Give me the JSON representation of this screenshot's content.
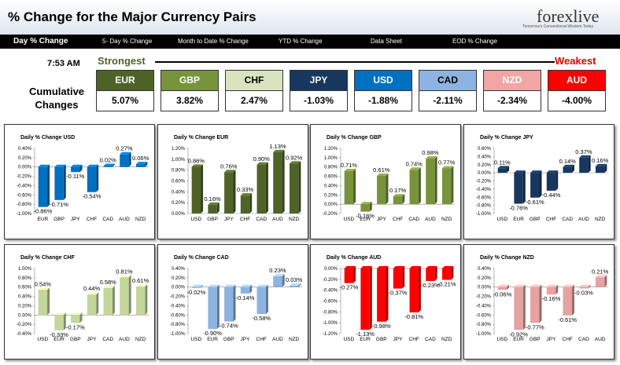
{
  "header": {
    "title": "% Change for the Major Currency Pairs",
    "logo_text": "forexlive",
    "logo_tagline": "Tomorrow's Conventional Wisdom Today"
  },
  "nav": {
    "items": [
      "Day % Change",
      "5- Day % Change",
      "Month to Date % Change",
      "YTD % Change",
      "Data Sheet",
      "EOD % Change"
    ],
    "active": "Day % Change"
  },
  "summary": {
    "time": "7:53 AM",
    "strongest_label": "Strongest",
    "weakest_label": "Weakest",
    "cumulative_label": "Cumulative Changes",
    "currencies": [
      {
        "code": "EUR",
        "value": "5.07%",
        "bg": "#4f6228",
        "fg": "#ffffff"
      },
      {
        "code": "GBP",
        "value": "3.82%",
        "bg": "#77933c",
        "fg": "#ffffff"
      },
      {
        "code": "CHF",
        "value": "2.47%",
        "bg": "#d7e4bd",
        "fg": "#000000"
      },
      {
        "code": "JPY",
        "value": "-1.03%",
        "bg": "#17375e",
        "fg": "#ffffff"
      },
      {
        "code": "USD",
        "value": "-1.88%",
        "bg": "#0070c0",
        "fg": "#ffffff"
      },
      {
        "code": "CAD",
        "value": "-2.11%",
        "bg": "#8db3e2",
        "fg": "#000000"
      },
      {
        "code": "NZD",
        "value": "-2.34%",
        "bg": "#f2a5a5",
        "fg": "#ffffff"
      },
      {
        "code": "AUD",
        "value": "-4.00%",
        "bg": "#ff0000",
        "fg": "#ffffff"
      }
    ]
  },
  "chart_data": [
    {
      "type": "bar",
      "title": "Daily % Change USD",
      "categories": [
        "EUR",
        "GBP",
        "JPY",
        "CHF",
        "CAD",
        "AUD",
        "NZD"
      ],
      "values": [
        -0.86,
        -0.71,
        -0.11,
        -0.54,
        0.02,
        0.27,
        0.06
      ],
      "labels": [
        "-0.86%",
        "-0.71%",
        "-0.11%",
        "-0.54%",
        "0.02%",
        "0.27%",
        "0.06%"
      ],
      "ylim": [
        -1.0,
        0.4
      ],
      "ticks": [
        "0.40%",
        "0.20%",
        "0.00%",
        "-0.20%",
        "-0.40%",
        "-0.60%",
        "-0.80%",
        "-1.00%"
      ],
      "tick_values": [
        0.4,
        0.2,
        0,
        -0.2,
        -0.4,
        -0.6,
        -0.8,
        -1.0
      ],
      "color": "#0070c0",
      "colors": [
        "#0070c0",
        "#0070c0",
        "#0070c0",
        "#0070c0",
        "#0070c0",
        "#0070c0",
        "#0070c0"
      ]
    },
    {
      "type": "bar",
      "title": "Daily % Change EUR",
      "categories": [
        "USD",
        "GBP",
        "JPY",
        "CHF",
        "CAD",
        "AUD",
        "NZD"
      ],
      "values": [
        0.86,
        0.16,
        0.76,
        0.33,
        0.9,
        1.13,
        0.92
      ],
      "labels": [
        "0.86%",
        "0.16%",
        "0.76%",
        "0.33%",
        "0.90%",
        "1.13%",
        "0.92%"
      ],
      "ylim": [
        0,
        1.2
      ],
      "ticks": [
        "1.20%",
        "1.00%",
        "0.80%",
        "0.60%",
        "0.40%",
        "0.20%",
        "0.00%"
      ],
      "tick_values": [
        1.2,
        1.0,
        0.8,
        0.6,
        0.4,
        0.2,
        0
      ],
      "color": "#4f6228",
      "colors": [
        "#4f6228",
        "#4f6228",
        "#4f6228",
        "#4f6228",
        "#4f6228",
        "#4f6228",
        "#4f6228"
      ]
    },
    {
      "type": "bar",
      "title": "Daily % Change GBP",
      "categories": [
        "USD",
        "EUR",
        "JPY",
        "CHF",
        "CAD",
        "AUD",
        "NZD"
      ],
      "values": [
        0.71,
        -0.16,
        0.61,
        0.17,
        0.74,
        0.98,
        0.77
      ],
      "labels": [
        "0.71%",
        "-0.16%",
        "0.61%",
        "0.17%",
        "0.74%",
        "0.98%",
        "0.77%"
      ],
      "ylim": [
        -0.2,
        1.2
      ],
      "ticks": [
        "1.20%",
        "1.00%",
        "0.80%",
        "0.60%",
        "0.40%",
        "0.20%",
        "0.00%",
        "-0.20%"
      ],
      "tick_values": [
        1.2,
        1.0,
        0.8,
        0.6,
        0.4,
        0.2,
        0,
        -0.2
      ],
      "color": "#77933c",
      "colors": [
        "#77933c",
        "#77933c",
        "#77933c",
        "#77933c",
        "#77933c",
        "#77933c",
        "#77933c"
      ]
    },
    {
      "type": "bar",
      "title": "Daily % Change JPY",
      "categories": [
        "USD",
        "EUR",
        "GBP",
        "CHF",
        "CAD",
        "AUD",
        "NZD"
      ],
      "values": [
        0.11,
        -0.76,
        -0.61,
        -0.44,
        0.14,
        0.37,
        0.16
      ],
      "labels": [
        "0.11%",
        "-0.76%",
        "-0.61%",
        "-0.44%",
        "0.14%",
        "0.37%",
        "0.16%"
      ],
      "ylim": [
        -1.0,
        0.6
      ],
      "ticks": [
        "0.60%",
        "0.40%",
        "0.20%",
        "0.00%",
        "-0.20%",
        "-0.40%",
        "-0.60%",
        "-0.80%",
        "-1.00%"
      ],
      "tick_values": [
        0.6,
        0.4,
        0.2,
        0,
        -0.2,
        -0.4,
        -0.6,
        -0.8,
        -1.0
      ],
      "color": "#17375e",
      "colors": [
        "#17375e",
        "#17375e",
        "#17375e",
        "#17375e",
        "#17375e",
        "#17375e",
        "#17375e"
      ]
    },
    {
      "type": "bar",
      "title": "Daily % Change CHF",
      "categories": [
        "USD",
        "EUR",
        "GBP",
        "JPY",
        "CAD",
        "AUD",
        "NZD"
      ],
      "values": [
        0.54,
        -0.33,
        -0.17,
        0.44,
        0.58,
        0.81,
        0.61
      ],
      "labels": [
        "0.54%",
        "-0.33%",
        "-0.17%",
        "0.44%",
        "0.58%",
        "0.81%",
        "0.61%"
      ],
      "ylim": [
        -0.4,
        1.0
      ],
      "ticks": [
        "1.00%",
        "0.80%",
        "0.60%",
        "0.40%",
        "0.20%",
        "0.00%",
        "-0.20%",
        "-0.40%"
      ],
      "tick_values": [
        1.0,
        0.8,
        0.6,
        0.4,
        0.2,
        0,
        -0.2,
        -0.4
      ],
      "color": "#c3d69b",
      "colors": [
        "#c3d69b",
        "#c3d69b",
        "#c3d69b",
        "#c3d69b",
        "#c3d69b",
        "#c3d69b",
        "#c3d69b"
      ]
    },
    {
      "type": "bar",
      "title": "Daily % Change CAD",
      "categories": [
        "USD",
        "EUR",
        "GBP",
        "JPY",
        "CHF",
        "AUD",
        "NZD"
      ],
      "values": [
        -0.02,
        -0.9,
        -0.74,
        -0.14,
        -0.58,
        0.23,
        0.03
      ],
      "labels": [
        "-0.02%",
        "-0.90%",
        "-0.74%",
        "-0.14%",
        "-0.58%",
        "0.23%",
        "0.03%"
      ],
      "ylim": [
        -1.0,
        0.4
      ],
      "ticks": [
        "0.40%",
        "0.20%",
        "0.00%",
        "-0.20%",
        "-0.40%",
        "-0.60%",
        "-0.80%",
        "-1.00%"
      ],
      "tick_values": [
        0.4,
        0.2,
        0,
        -0.2,
        -0.4,
        -0.6,
        -0.8,
        -1.0
      ],
      "color": "#8db3e2",
      "colors": [
        "#8db3e2",
        "#8db3e2",
        "#8db3e2",
        "#8db3e2",
        "#8db3e2",
        "#8db3e2",
        "#8db3e2"
      ]
    },
    {
      "type": "bar",
      "title": "Daily % Change AUD",
      "categories": [
        "USD",
        "EUR",
        "GBP",
        "JPY",
        "CHF",
        "CAD",
        "NZD"
      ],
      "values": [
        -0.27,
        -1.13,
        -0.98,
        -0.37,
        -0.81,
        -0.23,
        -0.21
      ],
      "labels": [
        "-0.27%",
        "-1.13%",
        "-0.98%",
        "-0.37%",
        "-0.81%",
        "-0.23%",
        "-0.21%"
      ],
      "ylim": [
        -1.2,
        0
      ],
      "ticks": [
        "0.00%",
        "-0.20%",
        "-0.40%",
        "-0.60%",
        "-0.80%",
        "-1.00%",
        "-1.20%"
      ],
      "tick_values": [
        0,
        -0.2,
        -0.4,
        -0.6,
        -0.8,
        -1.0,
        -1.2
      ],
      "color": "#ff0000",
      "colors": [
        "#ff0000",
        "#ff0000",
        "#ff0000",
        "#ff0000",
        "#ff0000",
        "#ff0000",
        "#ff0000"
      ]
    },
    {
      "type": "bar",
      "title": "Daily % Change NZD",
      "categories": [
        "USD",
        "EUR",
        "GBP",
        "JPY",
        "CHF",
        "CAD",
        "AUD"
      ],
      "values": [
        -0.06,
        -0.92,
        -0.77,
        -0.16,
        -0.61,
        -0.03,
        0.21
      ],
      "labels": [
        "-0.06%",
        "-0.92%",
        "-0.77%",
        "-0.16%",
        "-0.61%",
        "-0.03%",
        "0.21%"
      ],
      "ylim": [
        -1.0,
        0.4
      ],
      "ticks": [
        "0.40%",
        "0.20%",
        "0.00%",
        "-0.20%",
        "-0.40%",
        "-0.60%",
        "-0.80%",
        "-1.00%"
      ],
      "tick_values": [
        0.4,
        0.2,
        0,
        -0.2,
        -0.4,
        -0.6,
        -0.8,
        -1.0
      ],
      "color": "#e6a1a1",
      "colors": [
        "#e6a1a1",
        "#e6a1a1",
        "#e6a1a1",
        "#e6a1a1",
        "#e6a1a1",
        "#e6a1a1",
        "#e6a1a1"
      ]
    }
  ]
}
